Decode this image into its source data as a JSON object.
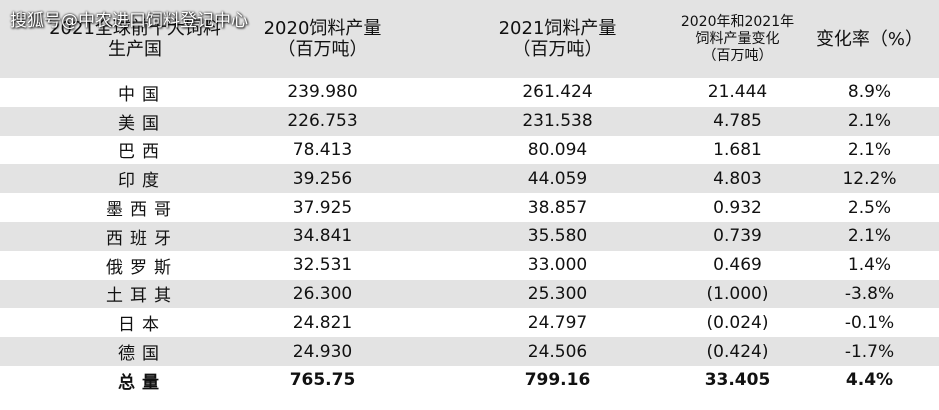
{
  "watermark": "搜狐号@中农进口饲料登记中心",
  "table": {
    "header": [
      [
        "2021全球前十大饲料",
        "生产国"
      ],
      [
        "2020饲料产量",
        "（百万吨）"
      ],
      [
        "2021饲料产量",
        "（百万吨）"
      ],
      [
        "2020年和2021年",
        "饲料产量变化",
        "（百万吨）"
      ],
      [
        "变化率（%）"
      ]
    ],
    "rows": [
      [
        "中国",
        "239.980",
        "261.424",
        "21.444",
        "8.9%"
      ],
      [
        "美国",
        "226.753",
        "231.538",
        "4.785",
        "2.1%"
      ],
      [
        "巴西",
        "78.413",
        "80.094",
        "1.681",
        "2.1%"
      ],
      [
        "印度",
        "39.256",
        "44.059",
        "4.803",
        "12.2%"
      ],
      [
        "墨西哥",
        "37.925",
        "38.857",
        "0.932",
        "2.5%"
      ],
      [
        "西班牙",
        "34.841",
        "35.580",
        "0.739",
        "2.1%"
      ],
      [
        "俄罗斯",
        "32.531",
        "33.000",
        "0.469",
        "1.4%"
      ],
      [
        "土耳其",
        "26.300",
        "25.300",
        "(1.000)",
        "-3.8%"
      ],
      [
        "日本",
        "24.821",
        "24.797",
        "(0.024)",
        "-0.1%"
      ],
      [
        "德国",
        "24.930",
        "24.506",
        "(0.424)",
        "-1.7%"
      ],
      [
        "总量",
        "765.75",
        "799.16",
        "33.405",
        "4.4%"
      ]
    ]
  }
}
